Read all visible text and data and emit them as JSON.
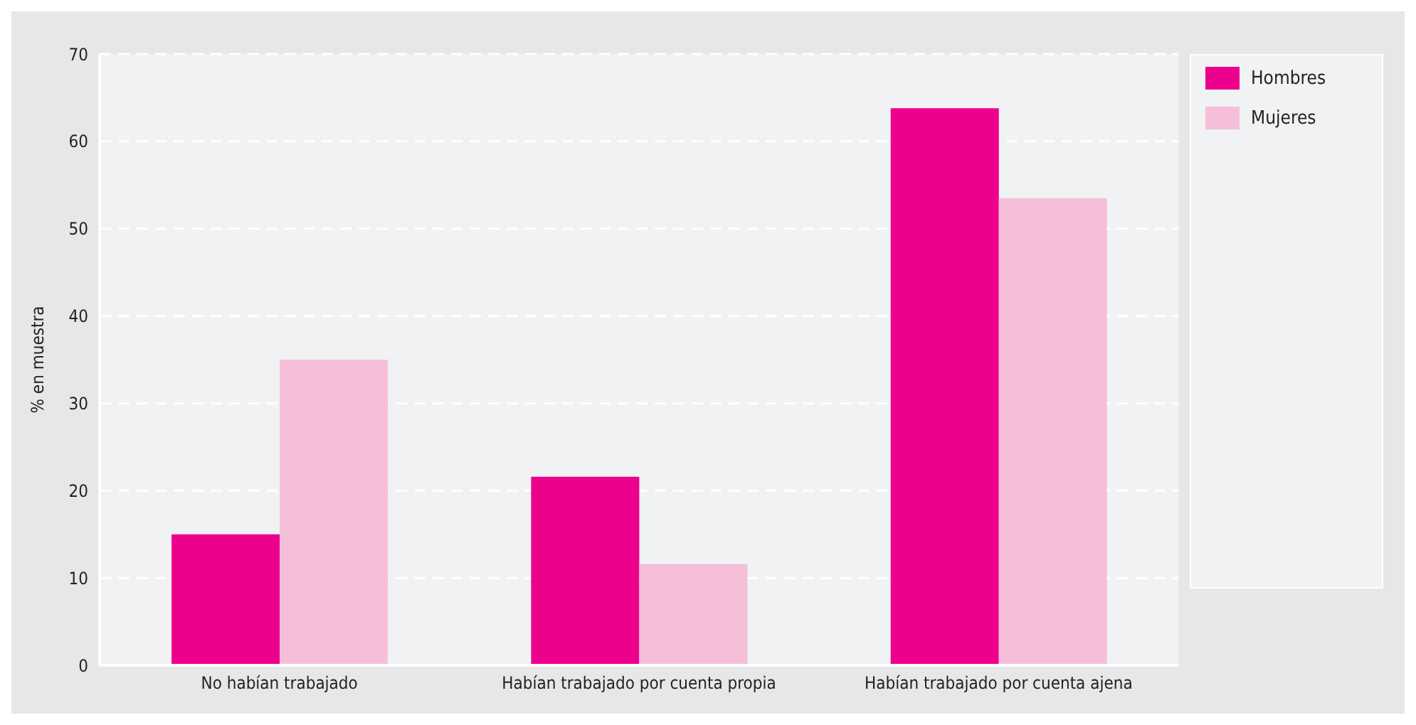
{
  "chart_data": {
    "type": "bar",
    "ylabel": "% en muestra",
    "categories": [
      "No habían trabajado",
      "Habían trabajado por cuenta propia",
      "Habían trabajado por cuenta ajena"
    ],
    "series": [
      {
        "name": "Hombres",
        "color": "#ec008c",
        "values": [
          15,
          21.6,
          63.8
        ]
      },
      {
        "name": "Mujeres",
        "color": "#f6bfd9",
        "values": [
          35,
          11.6,
          53.5
        ]
      }
    ],
    "ylim": [
      0,
      70
    ],
    "yticks": [
      0,
      10,
      20,
      30,
      40,
      50,
      60,
      70
    ],
    "grid": "y",
    "legend": "top right"
  }
}
